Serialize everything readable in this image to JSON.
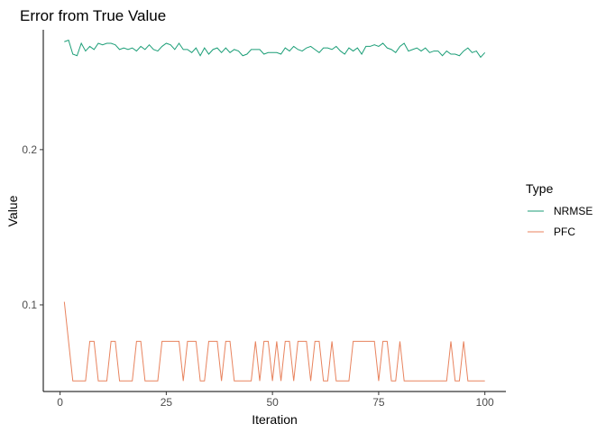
{
  "chart_data": {
    "type": "line",
    "title": "Error from True Value",
    "xlabel": "Iteration",
    "ylabel": "Value",
    "xlim": [
      -3.95,
      104.95
    ],
    "ylim": [
      0.0442,
      0.2772
    ],
    "xticks": [
      0,
      25,
      50,
      75,
      100
    ],
    "xtick_labels": [
      "0",
      "25",
      "50",
      "75",
      "100"
    ],
    "yticks": [
      0.1,
      0.2
    ],
    "ytick_labels": [
      "0.1",
      "0.2"
    ],
    "grid": false,
    "legend": {
      "title": "Type",
      "placement": "right",
      "entries": [
        "NRMSE",
        "PFC"
      ]
    },
    "colors": {
      "NRMSE": "#1b9e77",
      "PFC": "#e8835e"
    },
    "x": [
      1,
      2,
      3,
      4,
      5,
      6,
      7,
      8,
      9,
      10,
      11,
      12,
      13,
      14,
      15,
      16,
      17,
      18,
      19,
      20,
      21,
      22,
      23,
      24,
      25,
      26,
      27,
      28,
      29,
      30,
      31,
      32,
      33,
      34,
      35,
      36,
      37,
      38,
      39,
      40,
      41,
      42,
      43,
      44,
      45,
      46,
      47,
      48,
      49,
      50,
      51,
      52,
      53,
      54,
      55,
      56,
      57,
      58,
      59,
      60,
      61,
      62,
      63,
      64,
      65,
      66,
      67,
      68,
      69,
      70,
      71,
      72,
      73,
      74,
      75,
      76,
      77,
      78,
      79,
      80,
      81,
      82,
      83,
      84,
      85,
      86,
      87,
      88,
      89,
      90,
      91,
      92,
      93,
      94,
      95,
      96,
      97,
      98,
      99,
      100
    ],
    "series": [
      {
        "name": "NRMSE",
        "values": [
          0.2695,
          0.2705,
          0.2615,
          0.2605,
          0.2685,
          0.2635,
          0.2665,
          0.2645,
          0.2685,
          0.2675,
          0.2685,
          0.2685,
          0.2675,
          0.2645,
          0.2655,
          0.2645,
          0.2655,
          0.2635,
          0.2665,
          0.2645,
          0.2675,
          0.2645,
          0.2635,
          0.2665,
          0.2685,
          0.2675,
          0.2645,
          0.2685,
          0.2645,
          0.2645,
          0.2625,
          0.2655,
          0.2605,
          0.2655,
          0.2615,
          0.2645,
          0.2655,
          0.2625,
          0.2655,
          0.2625,
          0.2645,
          0.2635,
          0.2605,
          0.2615,
          0.2645,
          0.2645,
          0.2645,
          0.2615,
          0.2625,
          0.2625,
          0.2625,
          0.2615,
          0.2655,
          0.2635,
          0.2665,
          0.2645,
          0.2635,
          0.2655,
          0.2665,
          0.2645,
          0.2625,
          0.2655,
          0.2655,
          0.2645,
          0.2665,
          0.2635,
          0.2615,
          0.2655,
          0.2635,
          0.2655,
          0.2615,
          0.2665,
          0.2665,
          0.2675,
          0.2665,
          0.2685,
          0.2655,
          0.2645,
          0.2625,
          0.2665,
          0.2685,
          0.2635,
          0.2645,
          0.2655,
          0.2635,
          0.2655,
          0.2625,
          0.2635,
          0.2635,
          0.2605,
          0.2635,
          0.2615,
          0.2615,
          0.2605,
          0.2635,
          0.2655,
          0.2625,
          0.2635,
          0.2595,
          0.2625
        ]
      },
      {
        "name": "PFC",
        "values": [
          0.102,
          0.0765,
          0.051,
          0.051,
          0.051,
          0.051,
          0.0765,
          0.0765,
          0.051,
          0.051,
          0.051,
          0.0765,
          0.0765,
          0.051,
          0.051,
          0.051,
          0.051,
          0.0765,
          0.0765,
          0.051,
          0.051,
          0.051,
          0.051,
          0.0765,
          0.0765,
          0.0765,
          0.0765,
          0.0765,
          0.051,
          0.0765,
          0.0765,
          0.0765,
          0.051,
          0.051,
          0.0765,
          0.0765,
          0.0765,
          0.051,
          0.0765,
          0.0765,
          0.051,
          0.051,
          0.051,
          0.051,
          0.051,
          0.0765,
          0.051,
          0.0765,
          0.0765,
          0.051,
          0.0765,
          0.051,
          0.0765,
          0.0765,
          0.051,
          0.0765,
          0.0765,
          0.0765,
          0.051,
          0.0765,
          0.0765,
          0.051,
          0.051,
          0.0765,
          0.051,
          0.051,
          0.051,
          0.051,
          0.0765,
          0.0765,
          0.0765,
          0.0765,
          0.0765,
          0.0765,
          0.051,
          0.0765,
          0.0765,
          0.051,
          0.051,
          0.0765,
          0.051,
          0.051,
          0.051,
          0.051,
          0.051,
          0.051,
          0.051,
          0.051,
          0.051,
          0.051,
          0.051,
          0.0765,
          0.051,
          0.051,
          0.0765,
          0.051,
          0.051,
          0.051,
          0.051,
          0.051
        ]
      }
    ]
  }
}
